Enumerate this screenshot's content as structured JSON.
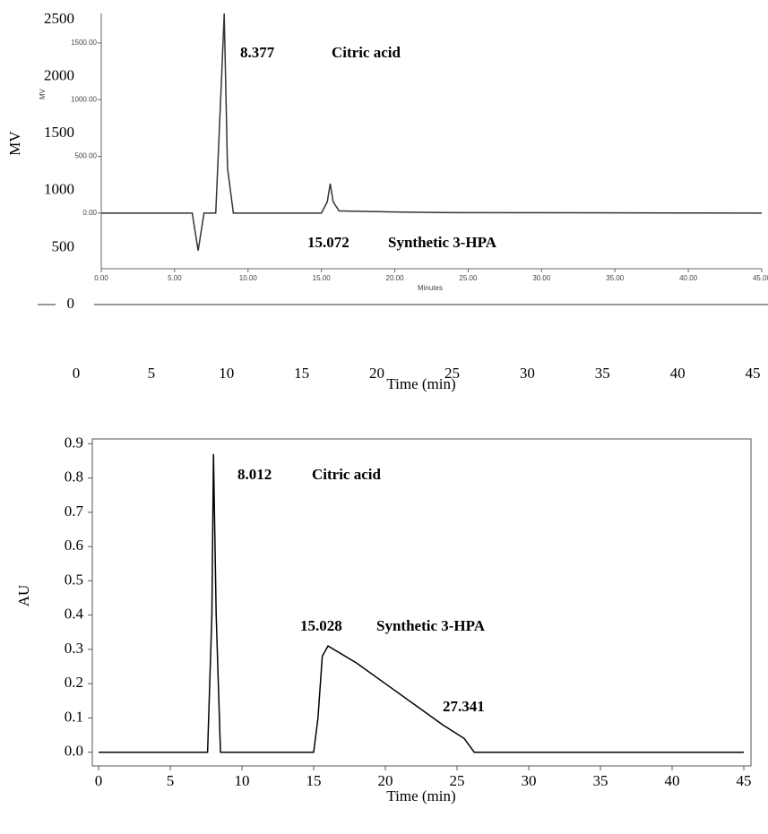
{
  "chart_data": [
    {
      "type": "line",
      "ylabel": "MV",
      "xlabel": "Time (min)",
      "xlim": [
        0,
        45
      ],
      "ylim": [
        0,
        2500
      ],
      "xticks": [
        0,
        5,
        10,
        15,
        20,
        25,
        30,
        35,
        40,
        45
      ],
      "yticks": [
        0,
        500,
        1000,
        1500,
        2000,
        2500
      ],
      "inset": {
        "xlabel": "Minutes",
        "ylabel": "MV",
        "xlim": [
          0,
          45
        ],
        "ylim": [
          -490,
          1760
        ],
        "xticks": [
          {
            "value": 0,
            "label": "0.00"
          },
          {
            "value": 5,
            "label": "5.00"
          },
          {
            "value": 10,
            "label": "10.00"
          },
          {
            "value": 15,
            "label": "15.00"
          },
          {
            "value": 20,
            "label": "20.00"
          },
          {
            "value": 25,
            "label": "25.00"
          },
          {
            "value": 30,
            "label": "30.00"
          },
          {
            "value": 35,
            "label": "35.00"
          },
          {
            "value": 40,
            "label": "40.00"
          },
          {
            "value": 45,
            "label": "45.00"
          }
        ],
        "yticks": [
          {
            "value": 0,
            "label": "0.00"
          },
          {
            "value": 500,
            "label": "500.00"
          },
          {
            "value": 1000,
            "label": "1000.00"
          },
          {
            "value": 1500,
            "label": "1500.00"
          }
        ]
      },
      "x": [
        0,
        6.2,
        6.6,
        7.0,
        7.8,
        8.2,
        8.377,
        8.6,
        9.0,
        15.0,
        15.4,
        15.6,
        15.8,
        16.2,
        20,
        23,
        45
      ],
      "values": [
        0,
        0,
        -330,
        0,
        0,
        1200,
        1760,
        400,
        0,
        0,
        100,
        260,
        100,
        20,
        10,
        5,
        0
      ],
      "color": "#333333",
      "annotations": [
        "8.377",
        "Citric acid",
        "15.072",
        "Synthetic 3-HPA"
      ]
    },
    {
      "type": "line",
      "ylabel": "AU",
      "xlabel": "Time (min)",
      "xlim": [
        -0.44,
        45.5
      ],
      "ylim": [
        -0.04,
        0.914
      ],
      "xticks": [
        0,
        5,
        10,
        15,
        20,
        25,
        30,
        35,
        40,
        45
      ],
      "yticks": [
        {
          "value": 0,
          "label": "0.0"
        },
        0.1,
        0.2,
        0.3,
        0.4,
        0.5,
        0.6,
        0.7,
        0.8,
        0.9
      ],
      "x": [
        0,
        7.6,
        7.9,
        8.012,
        8.2,
        8.5,
        15,
        15.3,
        15.6,
        16,
        18,
        20,
        22,
        24,
        25.5,
        26.2,
        27,
        45
      ],
      "values": [
        0,
        0,
        0.4,
        0.87,
        0.4,
        0,
        0,
        0.1,
        0.28,
        0.31,
        0.26,
        0.2,
        0.14,
        0.08,
        0.04,
        0,
        0,
        0
      ],
      "color": "#000000",
      "annotations": [
        "8.012",
        "Citric acid",
        "15.028",
        "Synthetic 3-HPA",
        "27.341"
      ]
    }
  ]
}
